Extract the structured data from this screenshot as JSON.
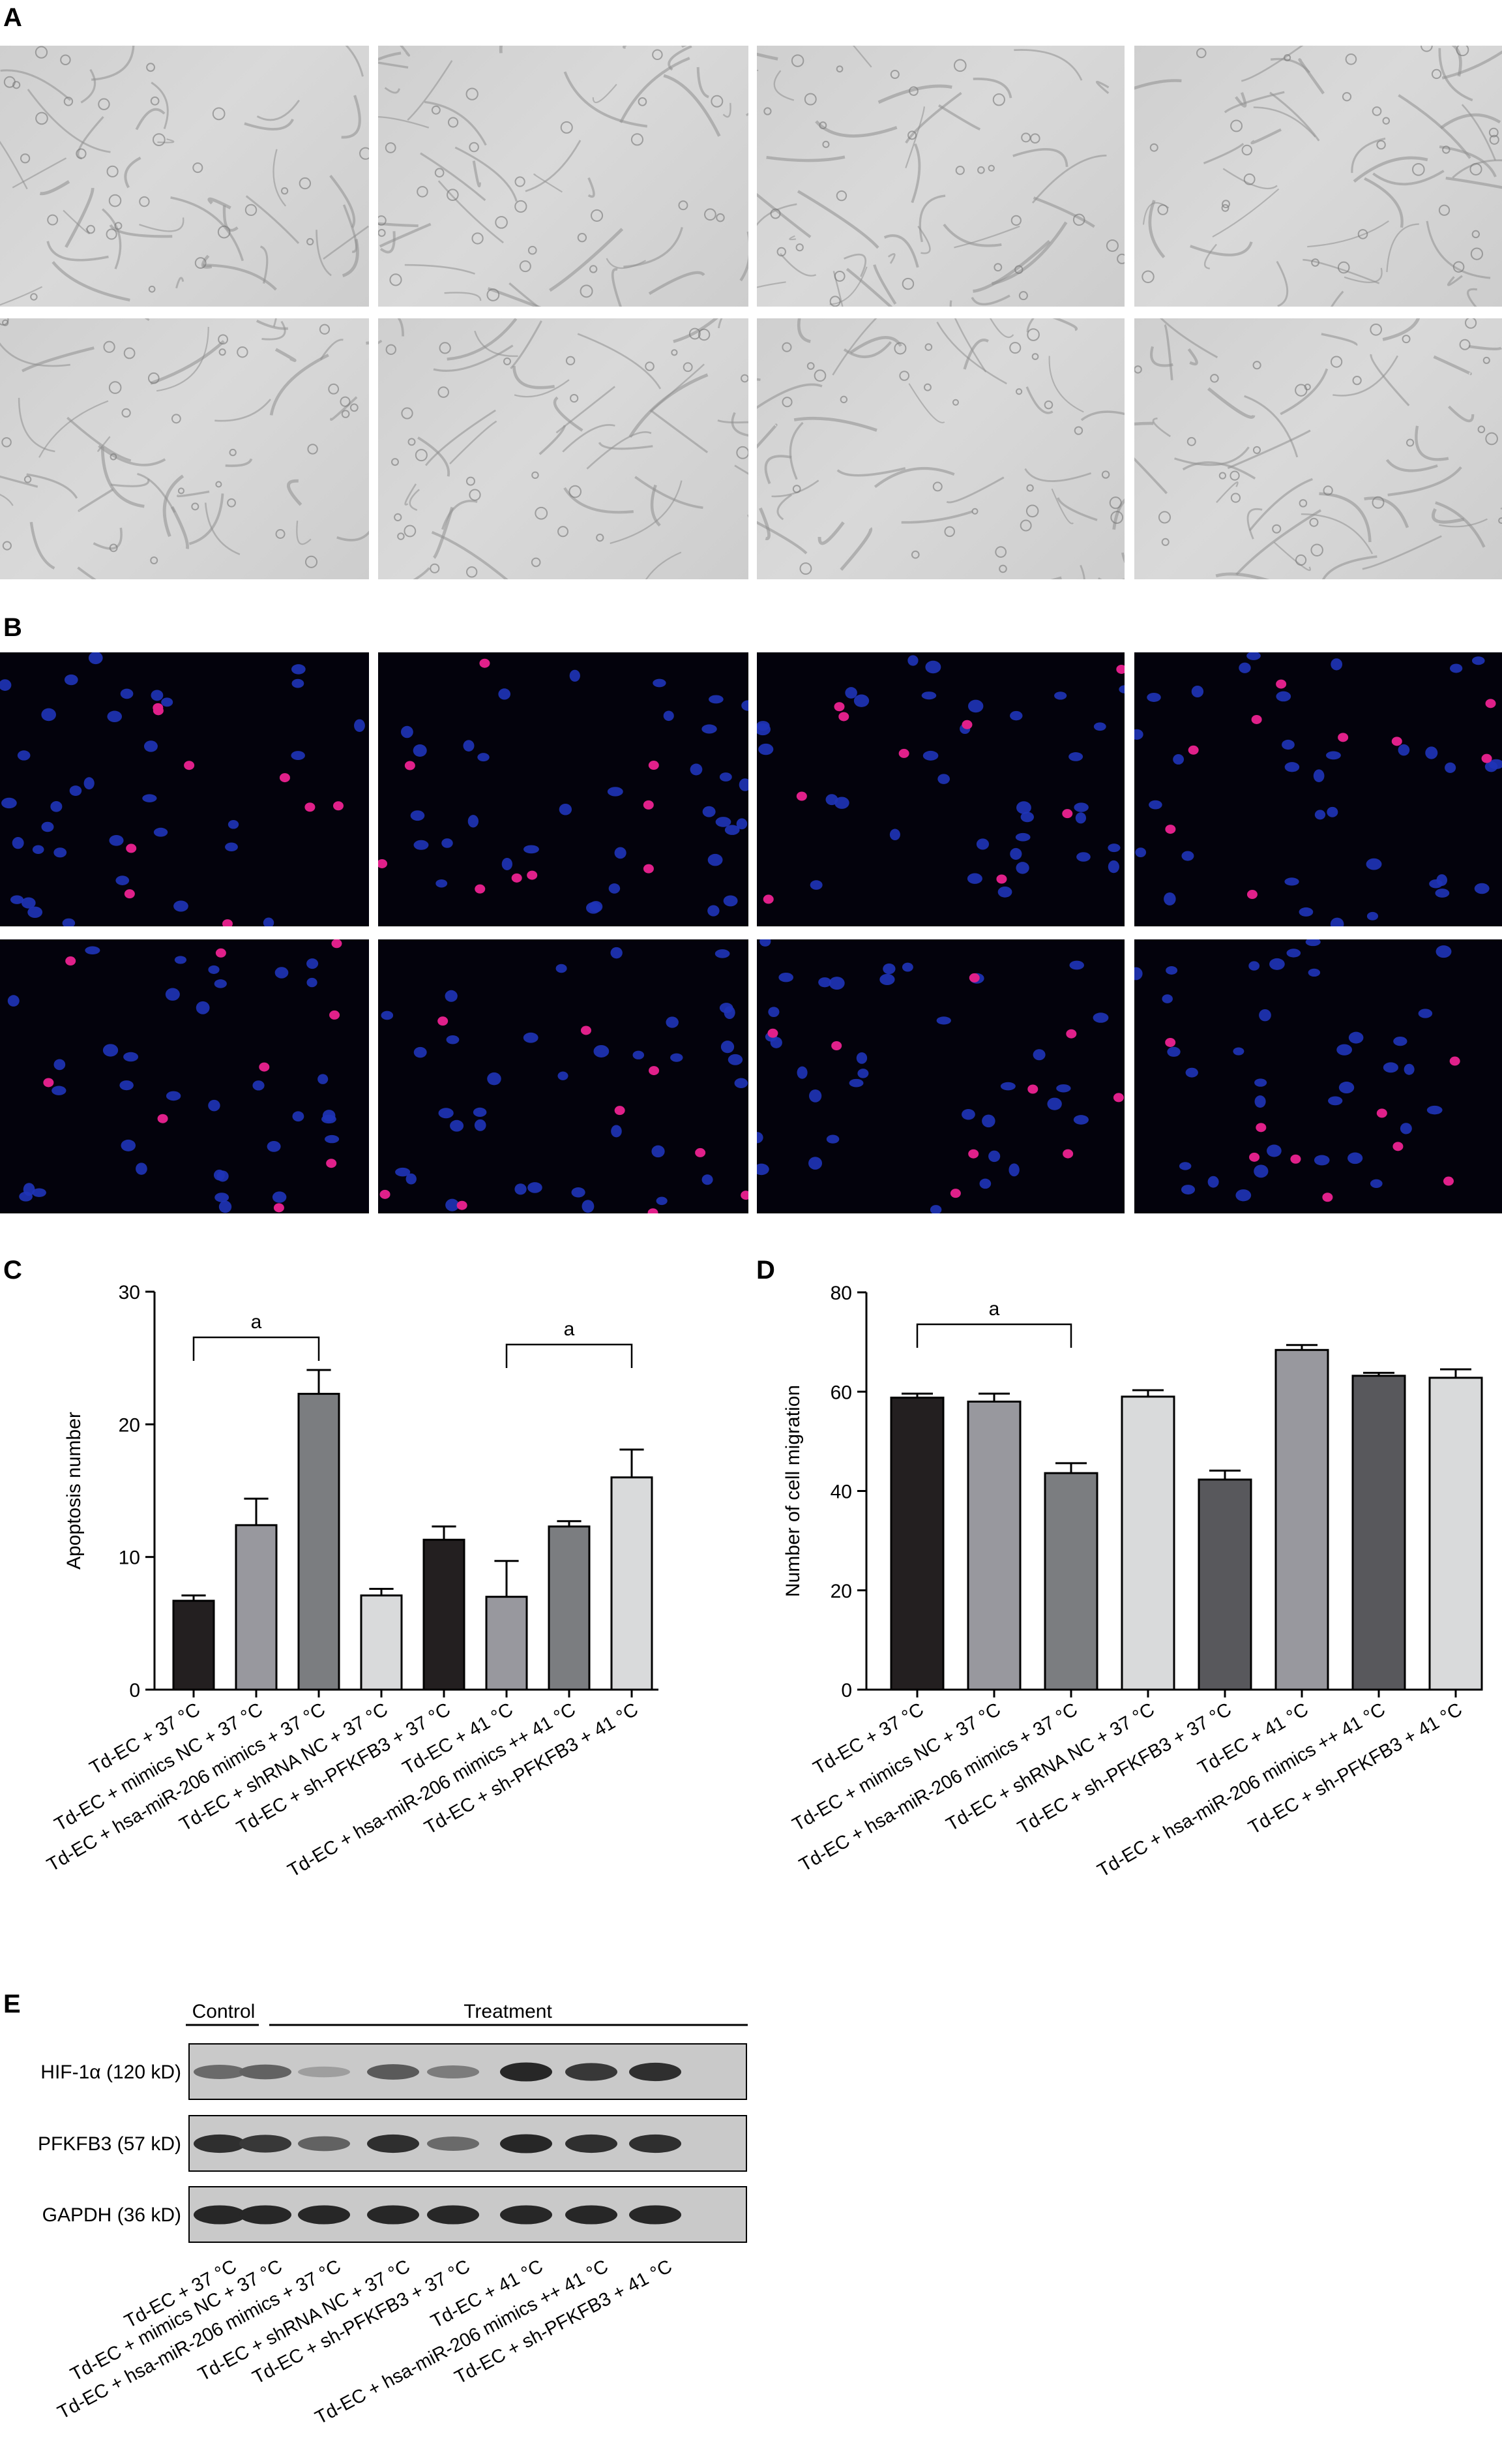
{
  "panels": {
    "a": "A",
    "b": "B",
    "c": "C",
    "d": "D",
    "e": "E"
  },
  "chart_data": [
    {
      "type": "bar",
      "panel": "C",
      "ylabel": "Apoptosis number",
      "xlabel": "",
      "ylim": [
        0,
        30
      ],
      "yticks": [
        "0",
        "10",
        "20",
        "30"
      ],
      "categories": [
        "Td-EC + 37 °C",
        "Td-EC + mimics NC + 37 °C",
        "Td-EC + hsa-miR-206 mimics + 37 °C",
        "Td-EC + shRNA NC + 37 °C",
        "Td-EC + sh-PFKFB3 + 37 °C",
        "Td-EC + 41 °C",
        "Td-EC + hsa-miR-206 mimics ++ 41 °C",
        "Td-EC + sh-PFKFB3 + 41 °C"
      ],
      "values": [
        6.7,
        12.4,
        22.3,
        7.1,
        11.3,
        7.0,
        12.3,
        16.0
      ],
      "errors": [
        0.4,
        2.0,
        1.8,
        0.5,
        1.0,
        2.7,
        0.4,
        2.1
      ],
      "colors": [
        "#231f20",
        "#98989e",
        "#7b7d80",
        "#d9dadb",
        "#231f20",
        "#98989e",
        "#7b7d80",
        "#d9dadb"
      ],
      "annotations": [
        {
          "text": "a",
          "from": 0,
          "to": 2
        },
        {
          "text": "a",
          "from": 5,
          "to": 7
        }
      ]
    },
    {
      "type": "bar",
      "panel": "D",
      "ylabel": "Number of cell migration",
      "xlabel": "",
      "ylim": [
        0,
        80
      ],
      "yticks": [
        "0",
        "20",
        "40",
        "60",
        "80"
      ],
      "categories": [
        "Td-EC + 37 °C",
        "Td-EC + mimics NC + 37 °C",
        "Td-EC + hsa-miR-206 mimics + 37 °C",
        "Td-EC + shRNA NC + 37 °C",
        "Td-EC + sh-PFKFB3 + 37 °C",
        "Td-EC + 41 °C",
        "Td-EC + hsa-miR-206 mimics ++ 41 °C",
        "Td-EC + sh-PFKFB3 + 41 °C"
      ],
      "values": [
        58.8,
        58.0,
        43.6,
        59.0,
        42.3,
        68.4,
        63.2,
        62.8
      ],
      "errors": [
        0.8,
        1.6,
        2.0,
        1.3,
        1.8,
        1.0,
        0.6,
        1.7
      ],
      "colors": [
        "#231f20",
        "#98989e",
        "#7b7d80",
        "#d9dadb",
        "#58585c",
        "#98989e",
        "#58585c",
        "#d9dadb"
      ],
      "annotations": [
        {
          "text": "a",
          "from": 0,
          "to": 2
        }
      ]
    }
  ],
  "blot": {
    "group_labels": {
      "control": "Control",
      "treatment": "Treatment"
    },
    "rows": [
      {
        "label": "HIF-1α (120 kD)",
        "intensity": [
          0.55,
          0.6,
          0.25,
          0.65,
          0.45,
          0.95,
          0.85,
          0.9
        ]
      },
      {
        "label": "PFKFB3 (57 kD)",
        "intensity": [
          0.9,
          0.85,
          0.6,
          0.9,
          0.55,
          0.95,
          0.9,
          0.9
        ]
      },
      {
        "label": "GAPDH (36 kD)",
        "intensity": [
          0.95,
          0.95,
          0.95,
          0.95,
          0.95,
          0.95,
          0.95,
          0.95
        ]
      }
    ],
    "lanes": [
      "Td-EC + 37 °C",
      "Td-EC + mimics NC + 37 °C",
      "Td-EC + hsa-miR-206 mimics + 37 °C",
      "Td-EC + shRNA NC + 37 °C",
      "Td-EC + sh-PFKFB3 + 37 °C",
      "Td-EC + 41 °C",
      "Td-EC + hsa-miR-206 mimics ++ 41 °C",
      "Td-EC + sh-PFKFB3 + 41 °C"
    ]
  }
}
